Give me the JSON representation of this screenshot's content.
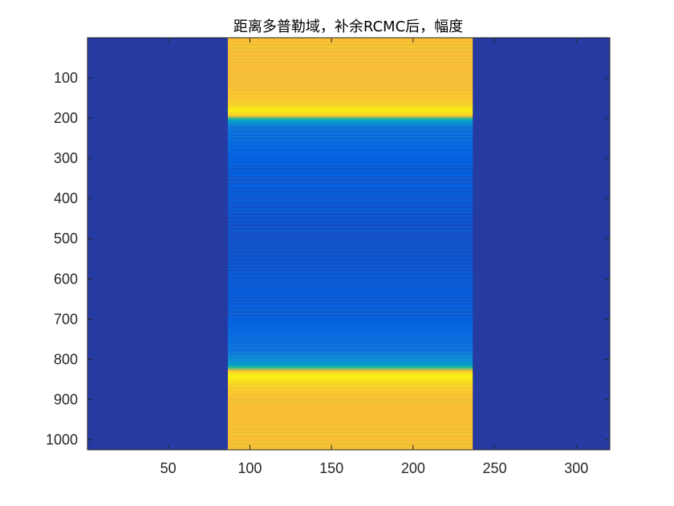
{
  "chart_data": {
    "type": "heatmap",
    "title": "距离多普勒域，补余RCMC后，幅度",
    "xlabel": "",
    "ylabel": "",
    "xlim": [
      0.5,
      320.5
    ],
    "ylim": [
      0.5,
      1024.5
    ],
    "y_reversed": true,
    "grid": false,
    "colormap": "parula",
    "background_value": 0.03,
    "x_ticks": [
      50,
      100,
      150,
      200,
      250,
      300
    ],
    "y_ticks": [
      100,
      200,
      300,
      400,
      500,
      600,
      700,
      800,
      900,
      1000
    ],
    "band_columns": [
      87,
      236
    ],
    "band_profile": [
      {
        "row": 1,
        "value": 0.8
      },
      {
        "row": 120,
        "value": 0.79
      },
      {
        "row": 165,
        "value": 0.86
      },
      {
        "row": 180,
        "value": 0.96
      },
      {
        "row": 192,
        "value": 0.9
      },
      {
        "row": 200,
        "value": 0.55
      },
      {
        "row": 208,
        "value": 0.3
      },
      {
        "row": 222,
        "value": 0.16
      },
      {
        "row": 300,
        "value": 0.1
      },
      {
        "row": 500,
        "value": 0.07
      },
      {
        "row": 700,
        "value": 0.1
      },
      {
        "row": 780,
        "value": 0.16
      },
      {
        "row": 812,
        "value": 0.3
      },
      {
        "row": 822,
        "value": 0.55
      },
      {
        "row": 832,
        "value": 0.92
      },
      {
        "row": 845,
        "value": 0.97
      },
      {
        "row": 862,
        "value": 0.88
      },
      {
        "row": 900,
        "value": 0.8
      },
      {
        "row": 1024,
        "value": 0.8
      }
    ]
  }
}
